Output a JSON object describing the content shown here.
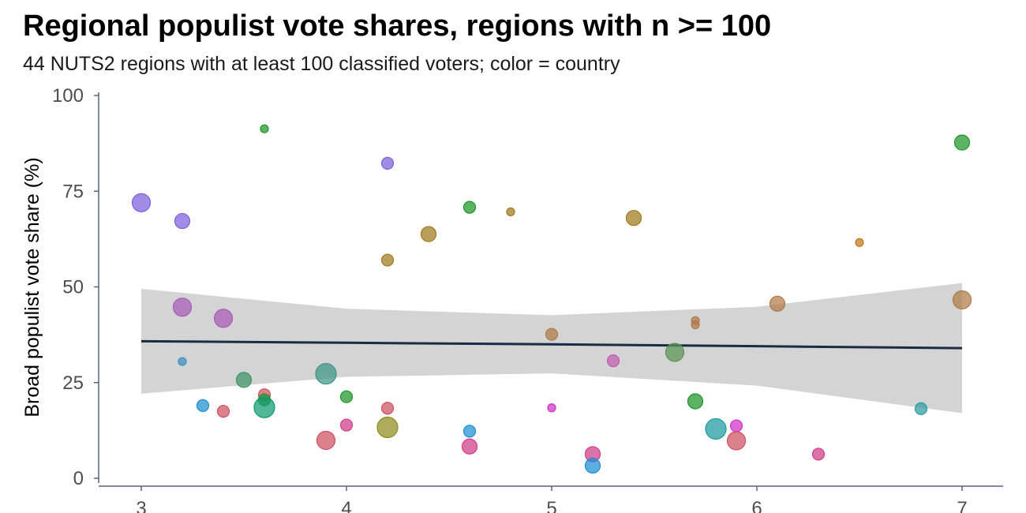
{
  "chart_data": {
    "type": "scatter",
    "title": "Regional populist vote shares, regions with n >= 100",
    "subtitle": "44 NUTS2 regions with at least 100 classified voters; color = country",
    "xlabel": "",
    "ylabel": "Broad populist vote share (%)",
    "xlim": [
      2.8,
      7.2
    ],
    "ylim": [
      0,
      100
    ],
    "xticks": [
      3,
      4,
      5,
      6,
      7
    ],
    "yticks": [
      0,
      25,
      50,
      75,
      100
    ],
    "grid": false,
    "legend": "none",
    "points": [
      {
        "x": 3.0,
        "y": 72,
        "size": 3,
        "color": "#7b5fdc"
      },
      {
        "x": 3.2,
        "y": 67.2,
        "size": 2,
        "color": "#7b5fdc"
      },
      {
        "x": 3.2,
        "y": 44.7,
        "size": 3,
        "color": "#a85cb8"
      },
      {
        "x": 3.2,
        "y": 30.5,
        "size": 0,
        "color": "#3b8fc4"
      },
      {
        "x": 3.3,
        "y": 19,
        "size": 1,
        "color": "#1c8fd0"
      },
      {
        "x": 3.4,
        "y": 41.8,
        "size": 3,
        "color": "#a85cb8"
      },
      {
        "x": 3.4,
        "y": 17.5,
        "size": 1,
        "color": "#cd5060"
      },
      {
        "x": 3.5,
        "y": 25.7,
        "size": 2,
        "color": "#3f9468"
      },
      {
        "x": 3.6,
        "y": 91.3,
        "size": 0,
        "color": "#1f9628"
      },
      {
        "x": 3.6,
        "y": 21.8,
        "size": 1,
        "color": "#cd5060"
      },
      {
        "x": 3.6,
        "y": 20.5,
        "size": 1,
        "color": "#1f9628"
      },
      {
        "x": 3.6,
        "y": 18.5,
        "size": 4,
        "color": "#0f9a70"
      },
      {
        "x": 3.9,
        "y": 27.3,
        "size": 4,
        "color": "#3b9488"
      },
      {
        "x": 3.9,
        "y": 9.9,
        "size": 3,
        "color": "#cd5060"
      },
      {
        "x": 4.0,
        "y": 21.3,
        "size": 1,
        "color": "#1f9628"
      },
      {
        "x": 4.0,
        "y": 13.9,
        "size": 1,
        "color": "#d03c88"
      },
      {
        "x": 4.2,
        "y": 82.3,
        "size": 1,
        "color": "#7b5fdc"
      },
      {
        "x": 4.2,
        "y": 57,
        "size": 1,
        "color": "#a0781c"
      },
      {
        "x": 4.2,
        "y": 18.3,
        "size": 1,
        "color": "#cd5060"
      },
      {
        "x": 4.2,
        "y": 13.3,
        "size": 4,
        "color": "#8c8c1c"
      },
      {
        "x": 4.4,
        "y": 63.8,
        "size": 2,
        "color": "#a0781c"
      },
      {
        "x": 4.6,
        "y": 70.8,
        "size": 1,
        "color": "#1f9628"
      },
      {
        "x": 4.6,
        "y": 12.3,
        "size": 1,
        "color": "#1c8fd0"
      },
      {
        "x": 4.6,
        "y": 8.3,
        "size": 2,
        "color": "#d03c88"
      },
      {
        "x": 4.8,
        "y": 69.6,
        "size": 0,
        "color": "#a0781c"
      },
      {
        "x": 5.0,
        "y": 37.6,
        "size": 1,
        "color": "#b07a48"
      },
      {
        "x": 5.0,
        "y": 18.4,
        "size": 0,
        "color": "#d030c8"
      },
      {
        "x": 5.2,
        "y": 6.3,
        "size": 2,
        "color": "#d03c88"
      },
      {
        "x": 5.2,
        "y": 3.3,
        "size": 2,
        "color": "#1c8fd0"
      },
      {
        "x": 5.3,
        "y": 30.7,
        "size": 1,
        "color": "#c05cb0"
      },
      {
        "x": 5.4,
        "y": 68,
        "size": 2,
        "color": "#a0781c"
      },
      {
        "x": 5.6,
        "y": 32.9,
        "size": 3,
        "color": "#5a9458"
      },
      {
        "x": 5.7,
        "y": 41.2,
        "size": 0,
        "color": "#b07a48"
      },
      {
        "x": 5.7,
        "y": 40.1,
        "size": 0,
        "color": "#b07a48"
      },
      {
        "x": 5.7,
        "y": 20.1,
        "size": 2,
        "color": "#1f9628"
      },
      {
        "x": 5.8,
        "y": 12.9,
        "size": 4,
        "color": "#1c9aa0"
      },
      {
        "x": 5.9,
        "y": 13.7,
        "size": 1,
        "color": "#d030c8"
      },
      {
        "x": 5.9,
        "y": 9.8,
        "size": 3,
        "color": "#cd5060"
      },
      {
        "x": 6.1,
        "y": 45.6,
        "size": 2,
        "color": "#b07a48"
      },
      {
        "x": 6.3,
        "y": 6.3,
        "size": 1,
        "color": "#d03c88"
      },
      {
        "x": 6.5,
        "y": 61.6,
        "size": 0,
        "color": "#c0781c"
      },
      {
        "x": 6.8,
        "y": 18.2,
        "size": 1,
        "color": "#2c9ca4"
      },
      {
        "x": 7.0,
        "y": 87.7,
        "size": 2,
        "color": "#1f9628"
      },
      {
        "x": 7.0,
        "y": 46.6,
        "size": 3,
        "color": "#b07a48"
      }
    ],
    "fit": {
      "x": [
        3,
        4,
        5,
        6,
        7
      ],
      "y": [
        35.8,
        35.4,
        35,
        34.5,
        34
      ],
      "ci_upper": [
        49.5,
        44.3,
        42.6,
        44.8,
        51
      ],
      "ci_lower": [
        22.1,
        26.5,
        27.4,
        24.2,
        17
      ],
      "line_color": "#1a2c45",
      "band_color": "#bdbdbd"
    }
  }
}
